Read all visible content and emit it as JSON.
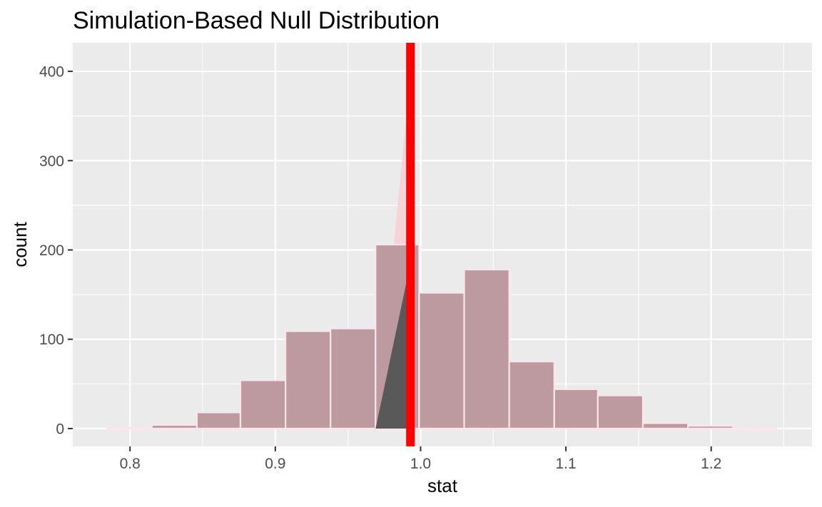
{
  "chart_data": {
    "type": "bar",
    "title": "Simulation-Based Null Distribution",
    "xlabel": "stat",
    "ylabel": "count",
    "xlim": [
      0.7606,
      1.2694
    ],
    "ylim": [
      -20,
      432
    ],
    "x_ticks": [
      0.8,
      0.9,
      1.0,
      1.1,
      1.2
    ],
    "x_tick_labels": [
      "0.8",
      "0.9",
      "1.0",
      "1.1",
      "1.2"
    ],
    "y_ticks": [
      0,
      100,
      200,
      300,
      400
    ],
    "y_tick_labels": [
      "0",
      "100",
      "200",
      "300",
      "400"
    ],
    "grid": true,
    "bins": [
      {
        "xmin": 0.784,
        "xmax": 0.815,
        "count": 1
      },
      {
        "xmin": 0.815,
        "xmax": 0.846,
        "count": 4
      },
      {
        "xmin": 0.846,
        "xmax": 0.876,
        "count": 18
      },
      {
        "xmin": 0.876,
        "xmax": 0.907,
        "count": 54
      },
      {
        "xmin": 0.907,
        "xmax": 0.938,
        "count": 109
      },
      {
        "xmin": 0.938,
        "xmax": 0.969,
        "count": 112
      },
      {
        "xmin": 0.969,
        "xmax": 0.999,
        "count": 206
      },
      {
        "xmin": 0.999,
        "xmax": 1.03,
        "count": 152
      },
      {
        "xmin": 1.03,
        "xmax": 1.061,
        "count": 178
      },
      {
        "xmin": 1.061,
        "xmax": 1.092,
        "count": 75
      },
      {
        "xmin": 1.092,
        "xmax": 1.122,
        "count": 44
      },
      {
        "xmin": 1.122,
        "xmax": 1.153,
        "count": 37
      },
      {
        "xmin": 1.153,
        "xmax": 1.184,
        "count": 6
      },
      {
        "xmin": 1.184,
        "xmax": 1.215,
        "count": 3
      },
      {
        "xmin": 1.215,
        "xmax": 1.245,
        "count": 1
      }
    ],
    "observed_stat": 0.993,
    "shaded_region": {
      "fill_triangle": [
        [
          0.969,
          0
        ],
        [
          0.993,
          395
        ],
        [
          0.993,
          0
        ]
      ],
      "dark_triangle": [
        [
          0.969,
          0
        ],
        [
          0.993,
          185
        ],
        [
          0.993,
          0
        ]
      ]
    },
    "colors": {
      "panel_background": "#ebebeb",
      "grid_line": "#ffffff",
      "bar_fill": "#bd9aa0",
      "bar_outline": "#fce5ea",
      "shade_fill": "#f7cfd6",
      "shade_dark": "#595959",
      "observed_line": "#ff0000",
      "tick_text": "#4d4d4d",
      "tick_mark": "#333333"
    }
  }
}
